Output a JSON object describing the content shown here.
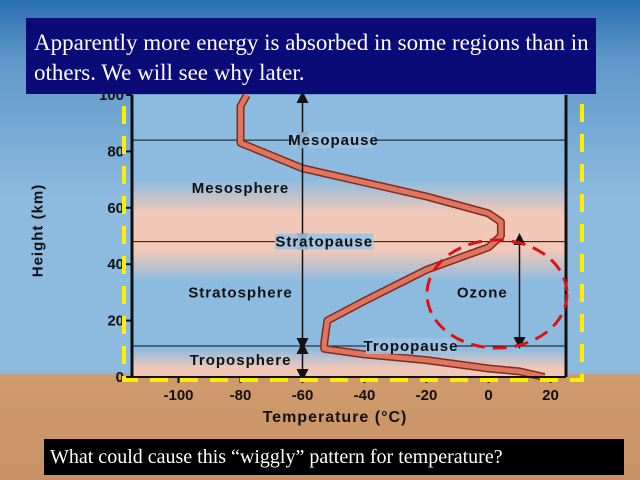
{
  "slide": {
    "caption_top": "Apparently more energy is absorbed in some regions than in others. We will see why later.",
    "caption_bottom": "What could cause this “wiggly”  pattern for temperature?"
  },
  "colors": {
    "profile_line": "#e0745e",
    "highlight_box": "#ffee00",
    "ozone_circle": "#e01010",
    "warm_band": "#f2c8b8",
    "cool_band": "#8dbbe0"
  },
  "chart_data": {
    "type": "line",
    "xlabel": "Temperature (°C)",
    "ylabel": "Height (km)",
    "xlim": [
      -115,
      25
    ],
    "ylim": [
      0,
      100
    ],
    "x_ticks": [
      -100,
      -80,
      -60,
      -40,
      -20,
      0,
      20
    ],
    "y_ticks": [
      0,
      20,
      40,
      60,
      80,
      100
    ],
    "series": [
      {
        "x": [
          18,
          10,
          0,
          -20,
          -40,
          -53,
          -53,
          -52,
          -40,
          -20,
          0,
          4,
          4,
          0,
          -20,
          -40,
          -60,
          -80,
          -80,
          -78
        ],
        "y": [
          0,
          2,
          3,
          6,
          8,
          10,
          12,
          20,
          27,
          38,
          46,
          50,
          55,
          58,
          64,
          69,
          74,
          83,
          96,
          100
        ]
      }
    ],
    "layers": [
      {
        "label": "Troposphere",
        "x": -80,
        "y": 6
      },
      {
        "label": "Stratosphere",
        "x": -80,
        "y": 30
      },
      {
        "label": "Mesosphere",
        "x": -80,
        "y": 67
      }
    ],
    "boundaries": [
      {
        "label": "Tropopause",
        "y": 11,
        "label_x": -25
      },
      {
        "label": "Stratopause",
        "y": 48,
        "label_x": -53
      },
      {
        "label": "Mesopause",
        "y": 84,
        "label_x": -50
      }
    ],
    "annotations": [
      {
        "label": "Ozone",
        "x": -2,
        "y": 30
      }
    ]
  }
}
